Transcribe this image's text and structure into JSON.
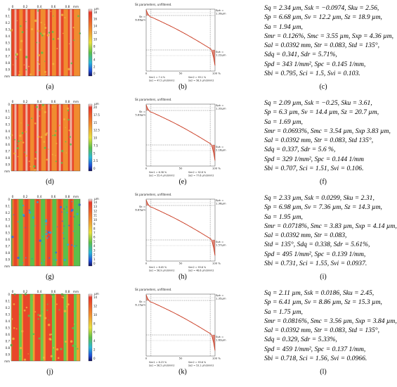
{
  "panels": [
    {
      "map_label": "(a)",
      "curve_label": "(b)",
      "params_label": "(c)",
      "map": {
        "axis_labels": [
          "0",
          "0.2",
          "0.4",
          "0.6",
          "0.8",
          "mm"
        ],
        "y_labels": [
          "0",
          "0.1",
          "0.2",
          "0.3",
          "0.4",
          "0.5",
          "0.6",
          "0.7",
          "0.8",
          "0.9",
          "mm"
        ],
        "unit": "µm",
        "scale_ticks": [
          "18",
          "16",
          "14",
          "12",
          "10",
          "8",
          "6",
          "4",
          "2",
          "0"
        ]
      },
      "curve": {
        "title": "Sk parameters, unfiltered.",
        "sk": "Sk =\n6.66µm",
        "spk": "Spk =\n1.39µm",
        "svk": "Svk =\n1.22µm",
        "smr1": "Smr1 = 7.4 %",
        "smr2": "Smr2 = 93.1 %",
        "v1": "Sa1 = 47.5 µm3/mm2",
        "v2": "Sa2 = 56.3 µm3/mm2",
        "x_left": "0",
        "x_mid": "50",
        "x_right": "100 %"
      },
      "params": [
        "Sq = 2.34 µm, Ssk = −0.0974, Sku = 2.56,",
        "Sp = 6.68 µm, Sv = 12.2 µm, Sz = 18.9 µm,",
        "Sa = 1.94 µm,",
        "Smr = 0.126%, Smc = 3.55 µm, Sxp = 4.36 µm,",
        "Sal = 0.0392 mm, Str = 0.083, Std = 135°,",
        "Sdq = 0.341, Sdr = 5.71%,",
        "Spd = 343 1/mm², Spc = 0.145 1/mm,",
        "Sbi = 0.795, Sci = 1.5, Svi = 0.103."
      ]
    },
    {
      "map_label": "(d)",
      "curve_label": "(e)",
      "params_label": "(f)",
      "map": {
        "axis_labels": [
          "0",
          "0.2",
          "0.4",
          "0.6",
          "0.8",
          "mm"
        ],
        "y_labels": [
          "0",
          "0.1",
          "0.2",
          "0.3",
          "0.4",
          "0.5",
          "0.6",
          "0.7",
          "0.8",
          "0.9",
          "mm"
        ],
        "unit": "µm",
        "scale_ticks": [
          "20",
          "17.5",
          "15",
          "12.5",
          "10",
          "7.5",
          "5",
          "2.5",
          "0"
        ]
      },
      "curve": {
        "title": "Sk parameters, unfiltered.",
        "sk": "Sk =\n5.89µm",
        "spk": "Spk =\n1.33µm",
        "svk": "Svk =\n2.16µm",
        "smr1": "Smr1 = 6.38 %",
        "smr2": "Smr2 = 92.8 %",
        "v1": "Sa1 = 55.4 µm3/mm2",
        "v2": "Sa2 = 77.6 µm3/mm2",
        "x_left": "0",
        "x_mid": "50",
        "x_right": "100 %"
      },
      "params": [
        "Sq = 2.09 µm, Ssk = −0.25, Sku = 3.61,",
        "Sp = 6.3 µm, Sv = 14.4 µm, Sz = 20.7 µm,",
        "Sa = 1.69 µm,",
        "Smr = 0.0693%, Smc = 3.54 µm, Sxp 3.83 µm,",
        "Sal = 0.0392 mm, Str = 0.083, Std 135°,",
        "Sdq = 0.337, Sdr = 5.6 %,",
        "Spd = 329 1/mm², Spc = 0.144 1/mm",
        "Sbi = 0.707, Sci = 1.51, Svi = 0.106."
      ]
    },
    {
      "map_label": "(g)",
      "curve_label": "(h)",
      "params_label": "(i)",
      "map": {
        "axis_labels": [
          "0",
          "0.2",
          "0.4",
          "0.6",
          "0.8",
          "mm"
        ],
        "y_labels": [
          "0",
          "0.1",
          "0.2",
          "0.3",
          "0.4",
          "0.5",
          "0.6",
          "0.7",
          "0.8",
          "0.9",
          "mm"
        ],
        "unit": "µm",
        "scale_ticks": [
          "14",
          "13",
          "12",
          "11",
          "10",
          "9",
          "8",
          "7",
          "6",
          "5",
          "4",
          "3",
          "2",
          "1",
          "0"
        ]
      },
      "curve": {
        "title": "Sk parameters, unfiltered.",
        "sk": "Sk =\n6.85µm",
        "spk": "Spk =\n1.36µm",
        "svk": "Svk =\n1.57µm",
        "smr1": "Smr1 = 8.05 %",
        "smr2": "Smr2 = 93.6 %",
        "v1": "Sa1 = 56.9 µm3/mm2",
        "v2": "Sa2 = 46.6 µm3/mm2",
        "x_left": "0",
        "x_mid": "50",
        "x_right": "100 %"
      },
      "params": [
        "Sq = 2.33 µm, Ssk = 0.0299, Sku = 2.31,",
        "Sp = 6.98 µm, Sv = 7.36 µm, Sz = 14.3 µm,",
        "Sa = 1.95 µm,",
        "Smr = 0.0718%, Smc = 3.83 µm, Sxp = 4.14 µm,",
        "Sal = 0.0392 mm, Str = 0.083,",
        "Std = 135°, Sdq = 0.338, Sdr = 5.61%,",
        "Spd = 495 1/mm², Spc = 0.139 1/mm,",
        "Sbi = 0.731, Sci = 1.55, Svi = 0.0937."
      ]
    },
    {
      "map_label": "(j)",
      "curve_label": "(k)",
      "params_label": "(l)",
      "map": {
        "axis_labels": [
          "0",
          "0.2",
          "0.4",
          "0.6",
          "0.8",
          "mm"
        ],
        "y_labels": [
          "0",
          "0.1",
          "0.2",
          "0.3",
          "0.4",
          "0.5",
          "0.6",
          "0.7",
          "0.8",
          "0.9",
          "mm"
        ],
        "unit": "µm",
        "scale_ticks": [
          "14",
          "12",
          "10",
          "8",
          "6",
          "4",
          "2",
          "0"
        ]
      },
      "curve": {
        "title": "Sk parameters, unfiltered.",
        "sk": "Sk =\n6.15µm",
        "spk": "Spk =\n1.35µm",
        "svk": "Svk =\n1.63µm",
        "smr1": "Smr1 = 8.23 %",
        "smr2": "Smr2 = 93.6 %",
        "v1": "Sa1 = 56.5 µm3/mm2",
        "v2": "Sa2 = 53.1 µm3/mm2",
        "x_left": "0",
        "x_mid": "50",
        "x_right": "100 %"
      },
      "params": [
        "Sq = 2.11 µm, Ssk = 0.0186, Sku = 2.45,",
        "Sp = 6.41 µm, Sv = 8.86 µm, Sz = 15.3 µm,",
        "Sa = 1.75 µm,",
        "Smr = 0.0816%, Smc = 3.56 µm, Sxp = 3.84 µm,",
        "Sal = 0.0392 mm, Str = 0.083, Std = 135°,",
        "Sdq = 0.329, Sdr = 5.33%,",
        "Spd = 459 1/mm², Spc = 0.137 1/mm,",
        "Sbi = 0.718, Sci = 1.56, Svi = 0.0966."
      ]
    }
  ],
  "colors": {
    "stripe_red": "#e8462a",
    "stripe_orange": "#f08a30",
    "stripe_green": "#5cc04a",
    "stripe_blue": "#2e6ee0",
    "curve_red": "#c8341a"
  }
}
